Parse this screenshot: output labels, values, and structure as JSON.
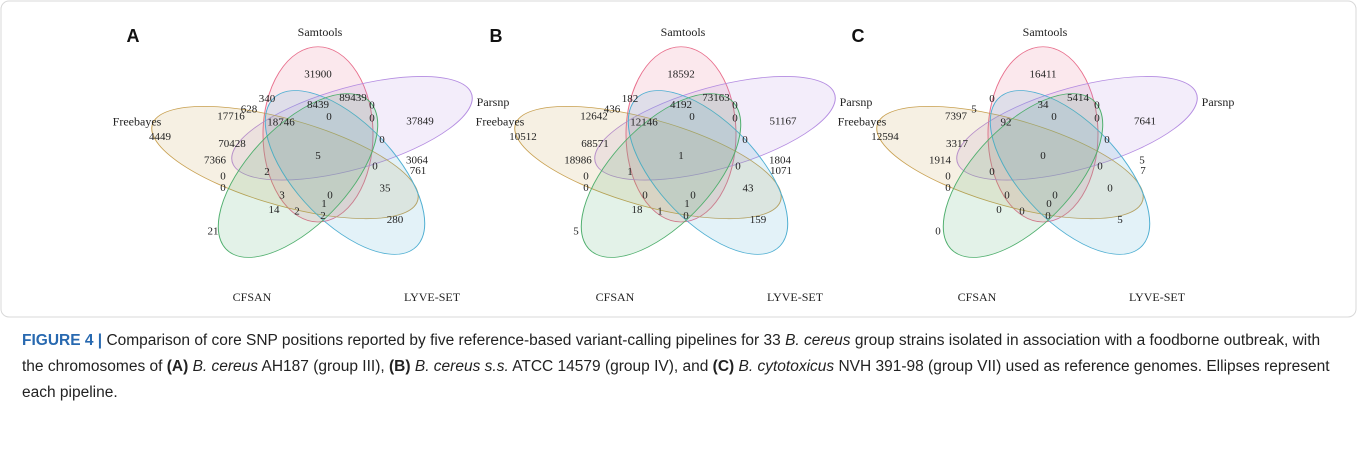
{
  "figure": {
    "panels": [
      {
        "letter": "A",
        "sets": [
          "Samtools",
          "Parsnp",
          "Freebayes",
          "LYVE-SET",
          "CFSAN"
        ],
        "regions": [
          31900,
          340,
          628,
          8439,
          89439,
          0,
          17716,
          18746,
          0,
          0,
          37849,
          4449,
          70428,
          0,
          5,
          7366,
          3064,
          761,
          0,
          2,
          0,
          0,
          35,
          3,
          0,
          1,
          14,
          2,
          2,
          21,
          280
        ]
      },
      {
        "letter": "B",
        "sets": [
          "Samtools",
          "Parsnp",
          "Freebayes",
          "LYVE-SET",
          "CFSAN"
        ],
        "regions": [
          18592,
          182,
          436,
          4192,
          73163,
          0,
          12642,
          12146,
          0,
          0,
          51167,
          10512,
          68571,
          0,
          1,
          18986,
          1804,
          1071,
          0,
          1,
          0,
          0,
          43,
          0,
          0,
          1,
          18,
          1,
          0,
          5,
          159
        ]
      },
      {
        "letter": "C",
        "sets": [
          "Samtools",
          "Parsnp",
          "Freebayes",
          "LYVE-SET",
          "CFSAN"
        ],
        "regions": [
          16411,
          0,
          5,
          34,
          5414,
          0,
          7397,
          92,
          0,
          0,
          7641,
          12594,
          3317,
          0,
          0,
          1914,
          5,
          7,
          0,
          0,
          0,
          0,
          0,
          0,
          0,
          0,
          0,
          0,
          0,
          0,
          5
        ]
      }
    ],
    "caption": {
      "label": "FIGURE 4 |",
      "runs": [
        {
          "text": " Comparison of core SNP positions reported by five reference-based variant-calling pipelines for 33 ",
          "style": "normal"
        },
        {
          "text": "B. cereus",
          "style": "italic"
        },
        {
          "text": " group strains isolated in association with a foodborne outbreak, with the chromosomes of ",
          "style": "normal"
        },
        {
          "text": "(A)",
          "style": "bold"
        },
        {
          "text": " B. cereus",
          "style": "italic"
        },
        {
          "text": " AH187 (group III), ",
          "style": "normal"
        },
        {
          "text": "(B)",
          "style": "bold"
        },
        {
          "text": " B. cereus s.s.",
          "style": "italic"
        },
        {
          "text": " ATCC 14579 (group IV), and ",
          "style": "normal"
        },
        {
          "text": "(C)",
          "style": "bold"
        },
        {
          "text": " B. cytotoxicus",
          "style": "italic"
        },
        {
          "text": " NVH 391-98 (group VII) used as reference genomes. Ellipses represent each pipeline.",
          "style": "normal"
        }
      ]
    }
  }
}
